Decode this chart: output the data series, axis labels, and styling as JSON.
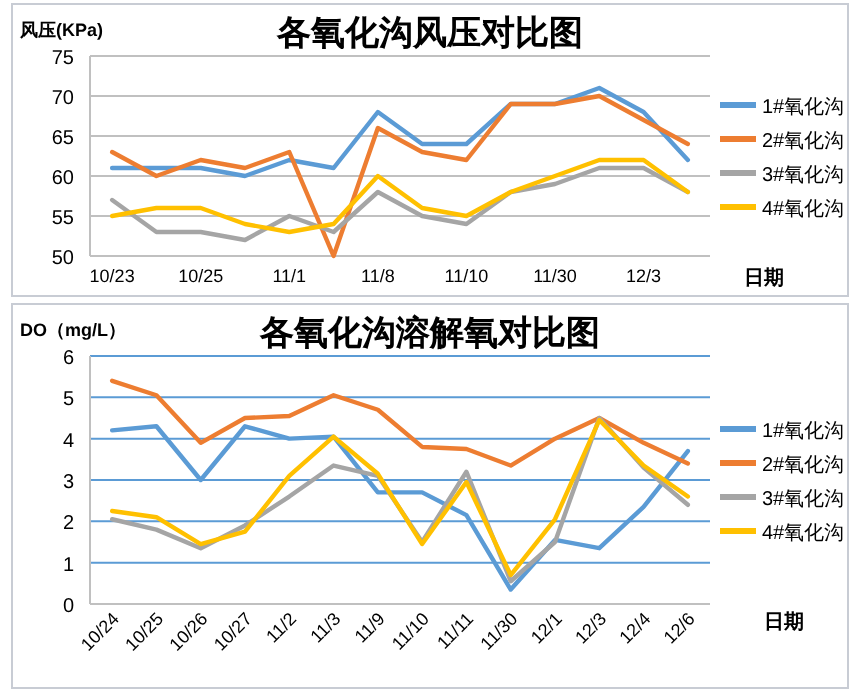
{
  "chart_data": [
    {
      "type": "line",
      "title": "各氧化沟风压对比图",
      "ylabel": "风压(KPa)",
      "xlabel": "日期",
      "categories": [
        "10/23",
        null,
        "10/25",
        null,
        "11/1",
        null,
        "11/8",
        null,
        "11/10",
        null,
        "11/30",
        null,
        "12/3",
        null
      ],
      "ylim": [
        50,
        75
      ],
      "yticks": [
        50,
        55,
        60,
        65,
        70,
        75
      ],
      "grid": "y",
      "legend": "right",
      "marker": "none",
      "series": [
        {
          "name": "1#氧化沟",
          "color": "#5b9bd5",
          "values": [
            61,
            61,
            61,
            60,
            62,
            61,
            68,
            64,
            64,
            69,
            69,
            71,
            68,
            62
          ]
        },
        {
          "name": "2#氧化沟",
          "color": "#ed7d31",
          "values": [
            63,
            60,
            62,
            61,
            63,
            50,
            66,
            63,
            62,
            69,
            69,
            70,
            67,
            64
          ]
        },
        {
          "name": "3#氧化沟",
          "color": "#a5a5a5",
          "values": [
            57,
            53,
            53,
            52,
            55,
            53,
            58,
            55,
            54,
            58,
            59,
            61,
            61,
            58
          ]
        },
        {
          "name": "4#氧化沟",
          "color": "#ffc000",
          "values": [
            55,
            56,
            56,
            54,
            53,
            54,
            60,
            56,
            55,
            58,
            60,
            62,
            62,
            58
          ]
        }
      ]
    },
    {
      "type": "line",
      "title": "各氧化沟溶解氧对比图",
      "ylabel": "DO（mg/L）",
      "xlabel": "日期",
      "categories": [
        "10/24",
        "10/25",
        "10/26",
        "10/27",
        "11/2",
        "11/3",
        "11/9",
        "11/10",
        "11/11",
        "11/30",
        "12/1",
        "12/3",
        "12/4",
        "12/6"
      ],
      "ylim": [
        0,
        6
      ],
      "yticks": [
        0,
        1,
        2,
        3,
        4,
        5,
        6
      ],
      "grid": "y",
      "legend": "right",
      "marker": "none",
      "series": [
        {
          "name": "1#氧化沟",
          "color": "#5b9bd5",
          "values": [
            4.2,
            4.3,
            3.0,
            4.3,
            4.0,
            4.05,
            2.7,
            2.7,
            2.15,
            0.35,
            1.55,
            1.35,
            2.35,
            3.7
          ]
        },
        {
          "name": "2#氧化沟",
          "color": "#ed7d31",
          "values": [
            5.4,
            5.05,
            3.9,
            4.5,
            4.55,
            5.05,
            4.7,
            3.8,
            3.75,
            3.35,
            4.0,
            4.5,
            3.9,
            3.4
          ]
        },
        {
          "name": "3#氧化沟",
          "color": "#a5a5a5",
          "values": [
            2.05,
            1.8,
            1.35,
            1.9,
            2.6,
            3.35,
            3.1,
            1.5,
            3.2,
            0.55,
            1.5,
            4.5,
            3.3,
            2.4
          ]
        },
        {
          "name": "4#氧化沟",
          "color": "#ffc000",
          "values": [
            2.25,
            2.1,
            1.45,
            1.75,
            3.1,
            4.05,
            3.15,
            1.45,
            2.95,
            0.7,
            2.05,
            4.45,
            3.35,
            2.6
          ]
        }
      ]
    }
  ]
}
